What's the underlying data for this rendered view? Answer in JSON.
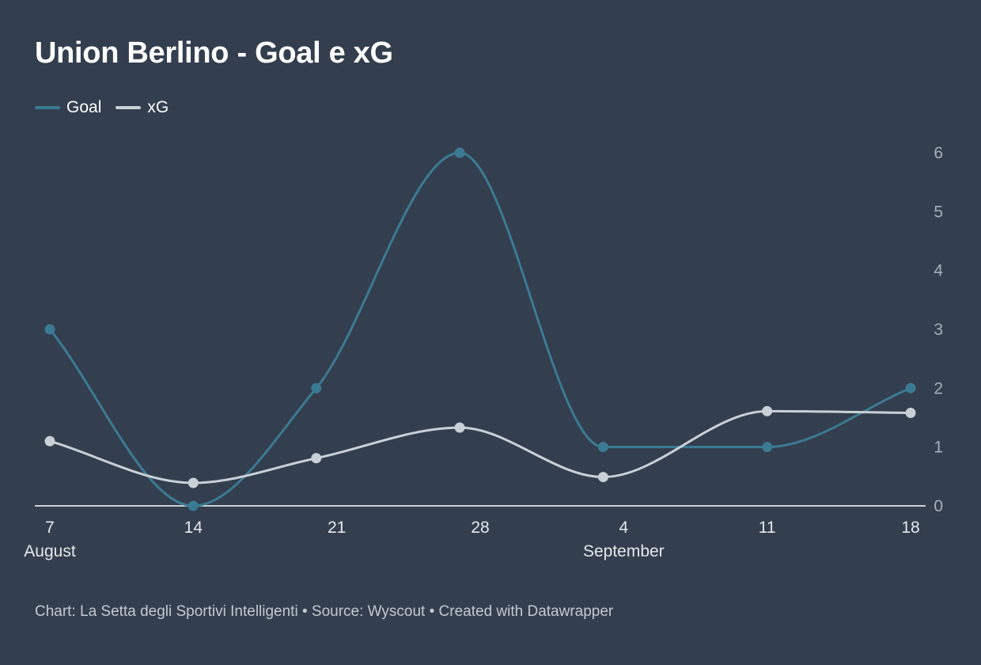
{
  "title": "Union Berlino - Goal e xG",
  "footer": {
    "text": "Chart: La Setta degli Sportivi Intelligenti • Source: Wyscout • Created with Datawrapper"
  },
  "colors": {
    "background": "#333e4e",
    "goal": "#3b7a94",
    "xg": "#c9d0d6",
    "axis": "#ffffff",
    "tick_text": "#a9b0b8",
    "x_tick_text": "#e6e9ec"
  },
  "chart_data": {
    "type": "line",
    "title": "Union Berlino - Goal e xG",
    "x": [
      "2021-08-07",
      "2021-08-14",
      "2021-08-20",
      "2021-08-27",
      "2021-09-03",
      "2021-09-11",
      "2021-09-18"
    ],
    "series": [
      {
        "name": "Goal",
        "color": "#3b7a94",
        "values": [
          3,
          0,
          2,
          6,
          1,
          1,
          2
        ]
      },
      {
        "name": "xG",
        "color": "#c9d0d6",
        "values": [
          1.1,
          0.39,
          0.81,
          1.33,
          0.49,
          1.61,
          1.58
        ]
      }
    ],
    "x_ticks": [
      {
        "date": "2021-08-07",
        "label": "7",
        "sublabel": "August"
      },
      {
        "date": "2021-08-14",
        "label": "14",
        "sublabel": ""
      },
      {
        "date": "2021-08-21",
        "label": "21",
        "sublabel": ""
      },
      {
        "date": "2021-08-28",
        "label": "28",
        "sublabel": ""
      },
      {
        "date": "2021-09-04",
        "label": "4",
        "sublabel": "September"
      },
      {
        "date": "2021-09-11",
        "label": "11",
        "sublabel": ""
      },
      {
        "date": "2021-09-18",
        "label": "18",
        "sublabel": ""
      }
    ],
    "y_ticks": [
      "0",
      "1",
      "2",
      "3",
      "4",
      "5",
      "6"
    ],
    "ylim": [
      0,
      6
    ],
    "xlim": [
      "2021-08-06",
      "2021-09-18"
    ],
    "xlabel": "",
    "ylabel": "",
    "grid": false,
    "y_axis_side": "right",
    "legend": "top-left",
    "curve": "smooth"
  }
}
